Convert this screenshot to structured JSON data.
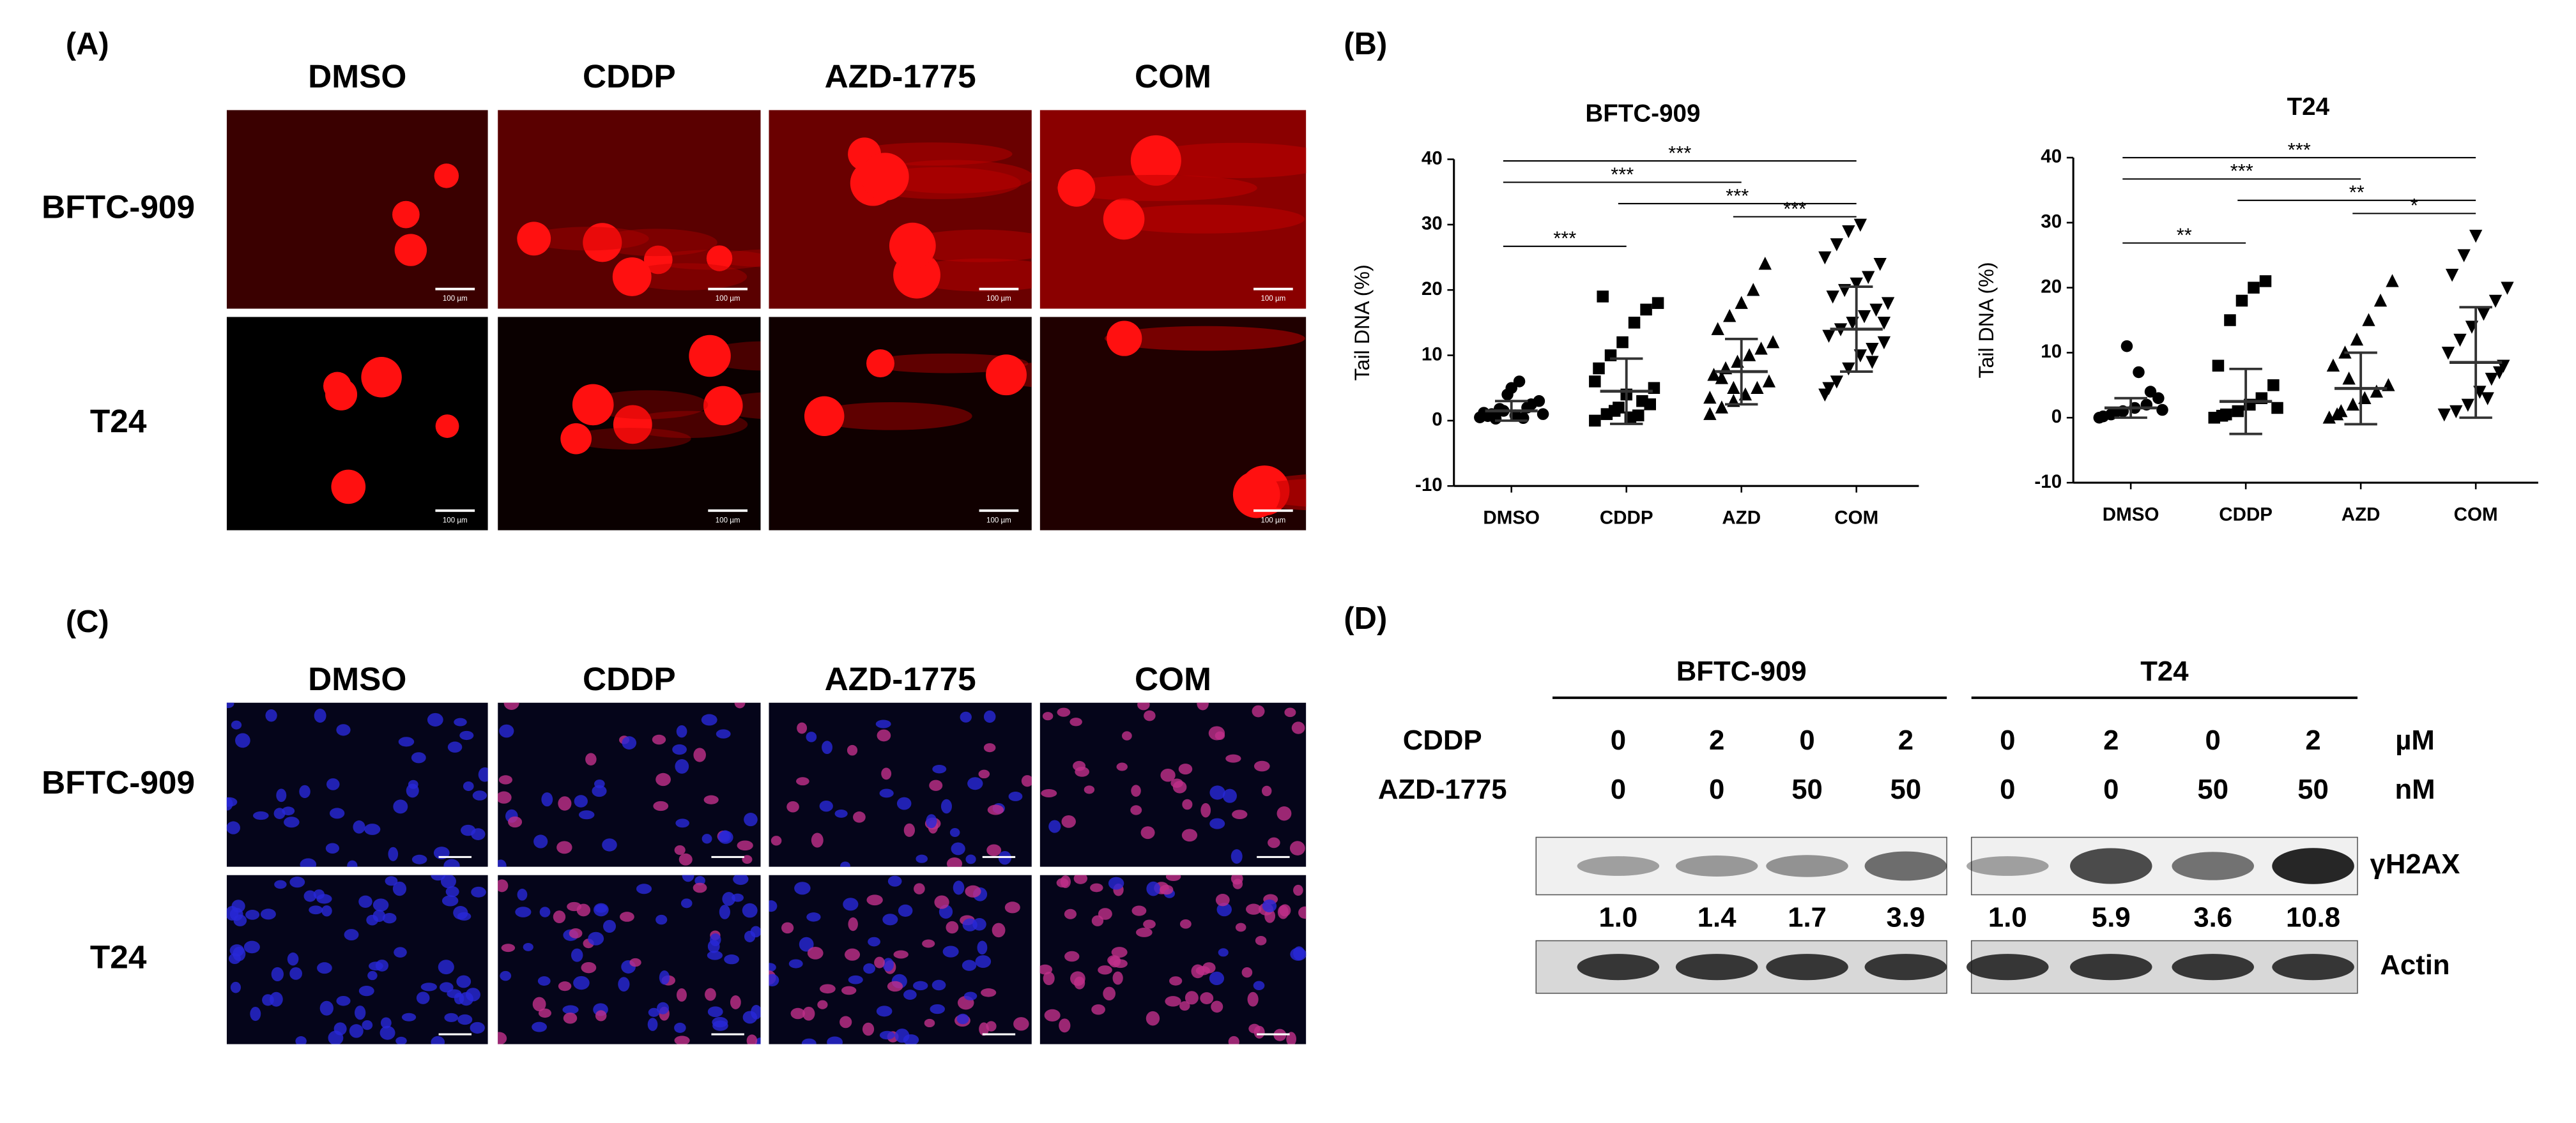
{
  "panel_a": {
    "label": "(A)",
    "columns": [
      "DMSO",
      "CDDP",
      "AZD-1775",
      "COM"
    ],
    "rows": [
      "BFTC-909",
      "T24"
    ],
    "scale_bar": "100 µm"
  },
  "panel_b": {
    "label": "(B)"
  },
  "panel_c": {
    "label": "(C)",
    "columns": [
      "DMSO",
      "CDDP",
      "AZD-1775",
      "COM"
    ],
    "rows": [
      "BFTC-909",
      "T24"
    ]
  },
  "chart_data": [
    {
      "type": "dot-plot",
      "title": "BFTC-909",
      "y_label": "Tail DNA (%)",
      "color": "#000000",
      "categories": [
        "DMSO",
        "CDDP",
        "AZD",
        "COM"
      ],
      "markers": [
        "circle",
        "square",
        "triangle",
        "triangle-down"
      ],
      "points": [
        [
          0.5,
          1,
          1.5,
          0.8,
          2,
          3,
          1.2,
          0.3,
          4,
          6,
          2.5,
          1,
          0.7,
          1.8,
          5,
          0.4
        ],
        [
          0,
          1,
          2,
          0.5,
          3,
          5,
          8,
          10,
          12,
          15,
          17,
          18,
          19,
          1.5,
          4,
          0.8,
          2.5,
          6
        ],
        [
          1,
          2,
          3,
          4,
          5,
          6,
          7,
          8,
          9,
          10,
          11,
          12,
          14,
          16,
          18,
          20,
          24,
          3.5,
          6.5,
          5
        ],
        [
          4,
          6,
          8,
          10,
          11,
          12,
          13,
          14,
          15,
          16,
          17,
          18,
          19,
          20,
          21,
          22,
          24,
          25,
          27,
          29,
          30,
          9,
          15,
          5
        ]
      ],
      "means": [
        1.5,
        4.5,
        7.5,
        14
      ],
      "sds": [
        1.5,
        5,
        5,
        6.5
      ],
      "ylim": [
        -10,
        40
      ],
      "yticks": [
        -10,
        0,
        10,
        20,
        30,
        40
      ],
      "significance": [
        {
          "from": 0,
          "to": 3,
          "label": "***"
        },
        {
          "from": 0,
          "to": 2,
          "label": "***"
        },
        {
          "from": 1,
          "to": 3,
          "label": "***"
        },
        {
          "from": 2,
          "to": 3,
          "label": "***"
        },
        {
          "from": 0,
          "to": 1,
          "label": "***"
        }
      ]
    },
    {
      "type": "dot-plot",
      "title": "T24",
      "y_label": "Tail DNA (%)",
      "color": "#000000",
      "categories": [
        "DMSO",
        "CDDP",
        "AZD",
        "COM"
      ],
      "markers": [
        "circle",
        "square",
        "triangle",
        "triangle-down"
      ],
      "points": [
        [
          0,
          0.5,
          1,
          1.5,
          2,
          3,
          0.2,
          0.8,
          11,
          7,
          4,
          1.2
        ],
        [
          0,
          0.5,
          1,
          2,
          3,
          5,
          8,
          15,
          18,
          20,
          21,
          1.5,
          0.3
        ],
        [
          0,
          1,
          2,
          3,
          4,
          5,
          8,
          10,
          12,
          15,
          18,
          21,
          0.5,
          6
        ],
        [
          0.5,
          1,
          2,
          4,
          6,
          8,
          10,
          12,
          14,
          16,
          18,
          20,
          22,
          25,
          28,
          3,
          7
        ]
      ],
      "means": [
        1.5,
        2.5,
        4.5,
        8.5
      ],
      "sds": [
        1.5,
        5,
        5.5,
        8.5
      ],
      "ylim": [
        -10,
        40
      ],
      "yticks": [
        -10,
        0,
        10,
        20,
        30,
        40
      ],
      "significance": [
        {
          "from": 0,
          "to": 3,
          "label": "***"
        },
        {
          "from": 0,
          "to": 2,
          "label": "***"
        },
        {
          "from": 1,
          "to": 3,
          "label": "**"
        },
        {
          "from": 2,
          "to": 3,
          "label": "*"
        },
        {
          "from": 0,
          "to": 1,
          "label": "**"
        }
      ]
    }
  ],
  "panel_d": {
    "label": "(D)",
    "cell_lines": [
      "BFTC-909",
      "T24"
    ],
    "treatments": [
      {
        "name": "CDDP",
        "unit": "µM",
        "values": [
          [
            "0",
            "2",
            "0",
            "2"
          ],
          [
            "0",
            "2",
            "0",
            "2"
          ]
        ]
      },
      {
        "name": "AZD-1775",
        "unit": "nM",
        "values": [
          [
            "0",
            "0",
            "50",
            "50"
          ],
          [
            "0",
            "0",
            "50",
            "50"
          ]
        ]
      }
    ],
    "proteins": [
      "γH2AX",
      "Actin"
    ],
    "quantification": [
      [
        "1.0",
        "1.4",
        "1.7",
        "3.9"
      ],
      [
        "1.0",
        "5.9",
        "3.6",
        "10.8"
      ]
    ]
  }
}
